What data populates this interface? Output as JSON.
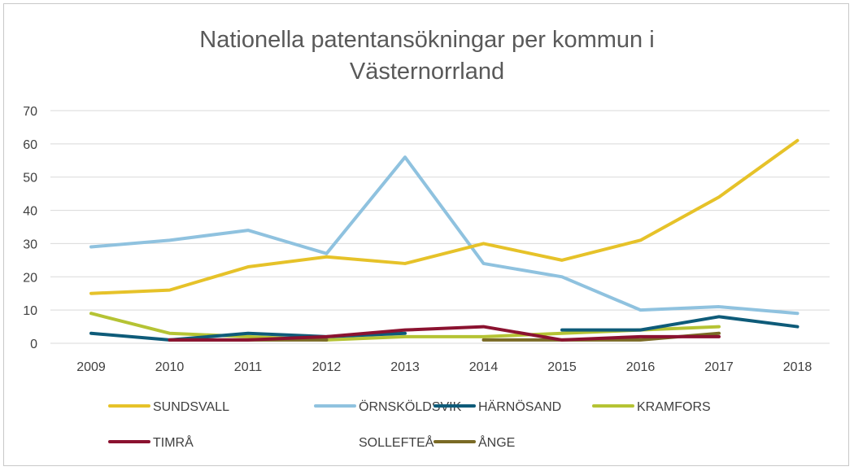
{
  "chart_data": {
    "type": "line",
    "title_lines": [
      "Nationella patentansökningar per kommun i",
      "Västernorrland"
    ],
    "categories": [
      "2009",
      "2010",
      "2011",
      "2012",
      "2013",
      "2014",
      "2015",
      "2016",
      "2017",
      "2018"
    ],
    "ylim": [
      0,
      70
    ],
    "yticks": [
      "0",
      "10",
      "20",
      "30",
      "40",
      "50",
      "60",
      "70"
    ],
    "grid": true,
    "legend_position": "bottom",
    "series": [
      {
        "name": "SUNDSVALL",
        "color": "#e6c229",
        "values": [
          15,
          16,
          23,
          26,
          24,
          30,
          25,
          31,
          44,
          61
        ]
      },
      {
        "name": "ÖRNSKÖLDSVIK",
        "color": "#8fc2df",
        "values": [
          29,
          31,
          34,
          27,
          56,
          24,
          20,
          10,
          11,
          9
        ]
      },
      {
        "name": "HÄRNÖSAND",
        "color": "#0e5b79",
        "values": [
          3,
          1,
          3,
          2,
          3,
          null,
          4,
          4,
          8,
          5
        ]
      },
      {
        "name": "KRAMFORS",
        "color": "#b5c334",
        "values": [
          9,
          3,
          2,
          1,
          2,
          2,
          3,
          4,
          5,
          null
        ]
      },
      {
        "name": "TIMRÅ",
        "color": "#8b1230",
        "values": [
          null,
          1,
          1,
          2,
          4,
          5,
          1,
          2,
          2,
          null
        ]
      },
      {
        "name": "SOLLEFTEÅ",
        "color": "#ffffff",
        "values": [
          null,
          null,
          null,
          null,
          null,
          null,
          null,
          null,
          null,
          null
        ]
      },
      {
        "name": "ÅNGE",
        "color": "#7a6a25",
        "values": [
          null,
          1,
          1,
          1,
          null,
          1,
          1,
          1,
          3,
          null
        ]
      }
    ]
  }
}
